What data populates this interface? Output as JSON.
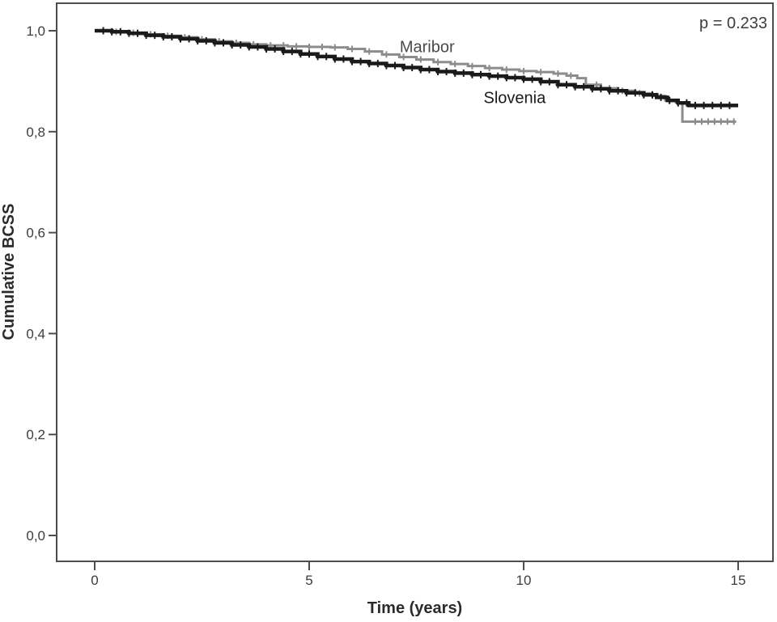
{
  "chart_data": {
    "type": "line",
    "subtype": "kaplan-meier-step",
    "title": "",
    "xlabel": "Time (years)",
    "ylabel": "Cumulative BCSS",
    "annotation": "p = 0.233",
    "xlim": [
      -0.89,
      15.81
    ],
    "ylim": [
      -0.051,
      1.054
    ],
    "grid": false,
    "legend_position": "inline-labels",
    "xticks": {
      "values": [
        0,
        5,
        10,
        15
      ],
      "labels": [
        "0",
        "5",
        "10",
        "15"
      ]
    },
    "yticks": {
      "values": [
        1.0,
        0.8,
        0.6,
        0.4,
        0.2,
        0.0
      ],
      "labels": [
        "1,0",
        "0,8",
        "0,6",
        "0,4",
        "0,2",
        "0,0"
      ]
    },
    "series": [
      {
        "name": "Maribor",
        "color": "#8c8c8c",
        "line_width": 3,
        "label_color": "#4a4a4a",
        "label_anchor": {
          "t": 7.75,
          "v": 0.969
        },
        "points": [
          [
            0,
            1.0
          ],
          [
            0.4,
            0.998
          ],
          [
            0.8,
            0.996
          ],
          [
            1.2,
            0.993
          ],
          [
            1.6,
            0.99
          ],
          [
            2.0,
            0.987
          ],
          [
            2.4,
            0.983
          ],
          [
            2.8,
            0.979
          ],
          [
            3.2,
            0.976
          ],
          [
            3.6,
            0.973
          ],
          [
            4.0,
            0.971
          ],
          [
            4.5,
            0.969
          ],
          [
            5.0,
            0.968
          ],
          [
            5.5,
            0.967
          ],
          [
            5.9,
            0.964
          ],
          [
            6.3,
            0.959
          ],
          [
            6.7,
            0.953
          ],
          [
            7.1,
            0.948
          ],
          [
            7.5,
            0.943
          ],
          [
            7.9,
            0.938
          ],
          [
            8.3,
            0.934
          ],
          [
            8.7,
            0.93
          ],
          [
            9.1,
            0.926
          ],
          [
            9.5,
            0.923
          ],
          [
            9.9,
            0.92
          ],
          [
            10.3,
            0.918
          ],
          [
            10.7,
            0.915
          ],
          [
            11.0,
            0.911
          ],
          [
            11.25,
            0.906
          ],
          [
            11.45,
            0.893
          ],
          [
            11.8,
            0.886
          ],
          [
            12.2,
            0.881
          ],
          [
            12.6,
            0.876
          ],
          [
            13.0,
            0.871
          ],
          [
            13.3,
            0.862
          ],
          [
            13.55,
            0.858
          ],
          [
            13.7,
            0.82
          ],
          [
            14.95,
            0.82
          ]
        ],
        "censor_times": [
          0.5,
          0.9,
          1.3,
          1.7,
          2.1,
          2.5,
          2.9,
          3.3,
          3.7,
          4.1,
          4.4,
          4.7,
          5.0,
          5.3,
          5.6,
          6.0,
          6.4,
          6.8,
          7.2,
          7.6,
          8.0,
          8.4,
          8.8,
          9.2,
          9.6,
          10.0,
          10.4,
          10.8,
          11.1,
          11.7,
          12.0,
          12.3,
          12.7,
          13.1,
          13.4,
          14.0,
          14.15,
          14.3,
          14.45,
          14.6,
          14.75,
          14.9
        ]
      },
      {
        "name": "Slovenia",
        "color": "#1a1a1a",
        "line_width": 4.5,
        "label_color": "#1a1a1a",
        "label_anchor": {
          "t": 9.79,
          "v": 0.868
        },
        "points": [
          [
            0,
            1.0
          ],
          [
            0.4,
            0.998
          ],
          [
            0.8,
            0.995
          ],
          [
            1.2,
            0.991
          ],
          [
            1.6,
            0.988
          ],
          [
            2.0,
            0.984
          ],
          [
            2.4,
            0.98
          ],
          [
            2.8,
            0.976
          ],
          [
            3.2,
            0.972
          ],
          [
            3.6,
            0.968
          ],
          [
            4.0,
            0.964
          ],
          [
            4.4,
            0.959
          ],
          [
            4.8,
            0.954
          ],
          [
            5.2,
            0.949
          ],
          [
            5.6,
            0.944
          ],
          [
            6.0,
            0.939
          ],
          [
            6.4,
            0.935
          ],
          [
            6.8,
            0.931
          ],
          [
            7.2,
            0.927
          ],
          [
            7.6,
            0.923
          ],
          [
            8.0,
            0.919
          ],
          [
            8.4,
            0.916
          ],
          [
            8.8,
            0.913
          ],
          [
            9.2,
            0.91
          ],
          [
            9.6,
            0.907
          ],
          [
            10.0,
            0.904
          ],
          [
            10.4,
            0.899
          ],
          [
            10.8,
            0.893
          ],
          [
            11.2,
            0.889
          ],
          [
            11.6,
            0.885
          ],
          [
            12.0,
            0.881
          ],
          [
            12.4,
            0.877
          ],
          [
            12.8,
            0.873
          ],
          [
            13.1,
            0.868
          ],
          [
            13.35,
            0.862
          ],
          [
            13.6,
            0.857
          ],
          [
            13.85,
            0.852
          ],
          [
            15.0,
            0.852
          ]
        ],
        "censor_times": [
          0.2,
          0.4,
          0.6,
          0.8,
          1.0,
          1.2,
          1.4,
          1.6,
          1.8,
          2.0,
          2.2,
          2.4,
          2.6,
          2.8,
          3.0,
          3.2,
          3.4,
          3.6,
          3.8,
          4.0,
          4.2,
          4.4,
          4.6,
          4.8,
          5.0,
          5.2,
          5.4,
          5.6,
          5.8,
          6.0,
          6.2,
          6.4,
          6.6,
          6.8,
          7.0,
          7.2,
          7.4,
          7.6,
          7.8,
          8.0,
          8.2,
          8.4,
          8.6,
          8.8,
          9.0,
          9.2,
          9.4,
          9.6,
          9.8,
          10.0,
          10.2,
          10.4,
          10.6,
          10.8,
          11.0,
          11.2,
          11.4,
          11.6,
          11.8,
          12.0,
          12.2,
          12.4,
          12.6,
          12.8,
          13.0,
          13.2,
          13.4,
          13.6,
          13.8,
          14.0,
          14.2,
          14.4,
          14.6,
          14.8
        ]
      }
    ]
  }
}
